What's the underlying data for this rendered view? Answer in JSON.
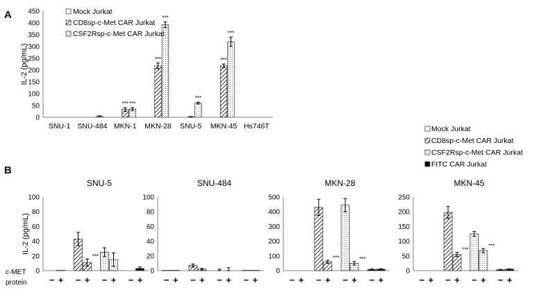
{
  "panels": {
    "a": "A",
    "b": "B"
  },
  "chart_data": [
    {
      "type": "bar",
      "panel": "A",
      "ylabel": "IL-2 (pg/mL)",
      "ylim": [
        0,
        450
      ],
      "yticks": [
        0,
        50,
        100,
        150,
        200,
        250,
        300,
        350,
        400,
        450
      ],
      "categories": [
        "SNU-1",
        "SNU-484",
        "MKN-1",
        "MKN-28",
        "SNU-5",
        "MKN-45",
        "Hs746T"
      ],
      "legend_position": "top-left",
      "series": [
        {
          "name": "Mock Jurkat",
          "pattern": "empty",
          "values": [
            0,
            0,
            0,
            0,
            0,
            0,
            0
          ],
          "errors": [
            0,
            0,
            0,
            0,
            0,
            0,
            0
          ],
          "sig": [
            "",
            "",
            "",
            "",
            "",
            "",
            ""
          ]
        },
        {
          "name": "CD8sp-c-Met CAR Jurkat",
          "pattern": "hatch",
          "values": [
            0,
            0,
            33,
            218,
            2,
            218,
            0
          ],
          "errors": [
            0,
            0,
            8,
            12,
            1,
            8,
            0
          ],
          "sig": [
            "",
            "",
            "***",
            "***",
            "",
            "***",
            ""
          ]
        },
        {
          "name": "CSF2Rsp-c-Met CAR Jurkat",
          "pattern": "dots",
          "values": [
            0,
            5,
            35,
            392,
            60,
            320,
            0
          ],
          "errors": [
            0,
            1,
            6,
            12,
            4,
            20,
            0
          ],
          "sig": [
            "",
            "",
            "***",
            "***",
            "***",
            "***",
            ""
          ]
        }
      ]
    },
    {
      "type": "bar",
      "panel": "B",
      "shared_legend": [
        "Mock Jurkat",
        "CD8sp-c-Met CAR Jurkat",
        "CSF2Rsp-c-Met CAR Jurkat",
        "FITC CAR Jurkat"
      ],
      "legend_position": "top-right",
      "ylabel": "IL-2 (pg/mL)",
      "xlabel_lines": [
        "c-MET",
        "protein"
      ],
      "x_conditions": [
        "−",
        "+"
      ],
      "subplots": [
        {
          "title": "SNU-5",
          "ylim": [
            0,
            100
          ],
          "yticks": [
            0,
            20,
            40,
            60,
            80,
            100
          ],
          "groups": [
            {
              "series": "Mock Jurkat",
              "values": [
                0,
                0.5
              ],
              "errors": [
                0,
                0
              ],
              "sig": [
                "",
                ""
              ]
            },
            {
              "series": "CD8sp-c-Met CAR Jurkat",
              "values": [
                43,
                11
              ],
              "errors": [
                9,
                5
              ],
              "sig": [
                "",
                "***"
              ]
            },
            {
              "series": "CSF2Rsp-c-Met CAR Jurkat",
              "values": [
                25,
                15
              ],
              "errors": [
                6,
                9
              ],
              "sig": [
                "",
                ""
              ]
            },
            {
              "series": "FITC CAR Jurkat",
              "values": [
                0,
                3
              ],
              "errors": [
                0,
                2
              ],
              "sig": [
                "",
                ""
              ]
            }
          ]
        },
        {
          "title": "SNU-484",
          "ylim": [
            0,
            100
          ],
          "yticks": [
            0,
            20,
            40,
            60,
            80,
            100
          ],
          "groups": [
            {
              "series": "Mock Jurkat",
              "values": [
                0.5,
                0.5
              ],
              "errors": [
                0,
                0
              ],
              "sig": [
                "",
                ""
              ]
            },
            {
              "series": "CD8sp-c-Met CAR Jurkat",
              "values": [
                7,
                2
              ],
              "errors": [
                2,
                1
              ],
              "sig": [
                "",
                ""
              ]
            },
            {
              "series": "CSF2Rsp-c-Met CAR Jurkat",
              "values": [
                0,
                0
              ],
              "errors": [
                2,
                4
              ],
              "sig": [
                "",
                ""
              ]
            },
            {
              "series": "FITC CAR Jurkat",
              "values": [
                0.5,
                0.5
              ],
              "errors": [
                0,
                0
              ],
              "sig": [
                "",
                ""
              ]
            }
          ]
        },
        {
          "title": "MKN-28",
          "ylim": [
            0,
            500
          ],
          "yticks": [
            0,
            100,
            200,
            300,
            400,
            500
          ],
          "groups": [
            {
              "series": "Mock Jurkat",
              "values": [
                0,
                0
              ],
              "errors": [
                0,
                0
              ],
              "sig": [
                "",
                ""
              ]
            },
            {
              "series": "CD8sp-c-Met CAR Jurkat",
              "values": [
                430,
                60
              ],
              "errors": [
                55,
                10
              ],
              "sig": [
                "",
                "***"
              ]
            },
            {
              "series": "CSF2Rsp-c-Met CAR Jurkat",
              "values": [
                445,
                50
              ],
              "errors": [
                45,
                12
              ],
              "sig": [
                "",
                "***"
              ]
            },
            {
              "series": "FITC CAR Jurkat",
              "values": [
                8,
                10
              ],
              "errors": [
                3,
                3
              ],
              "sig": [
                "",
                ""
              ]
            }
          ]
        },
        {
          "title": "MKN-45",
          "ylim": [
            0,
            250
          ],
          "yticks": [
            0,
            50,
            100,
            150,
            200,
            250
          ],
          "groups": [
            {
              "series": "Mock Jurkat",
              "values": [
                0,
                0
              ],
              "errors": [
                0,
                0
              ],
              "sig": [
                "",
                ""
              ]
            },
            {
              "series": "CD8sp-c-Met CAR Jurkat",
              "values": [
                198,
                55
              ],
              "errors": [
                20,
                7
              ],
              "sig": [
                "",
                "***"
              ]
            },
            {
              "series": "CSF2Rsp-c-Met CAR Jurkat",
              "values": [
                125,
                68
              ],
              "errors": [
                8,
                7
              ],
              "sig": [
                "",
                "***"
              ]
            },
            {
              "series": "FITC CAR Jurkat",
              "values": [
                3,
                5
              ],
              "errors": [
                1,
                1
              ],
              "sig": [
                "",
                ""
              ]
            }
          ]
        }
      ]
    }
  ]
}
